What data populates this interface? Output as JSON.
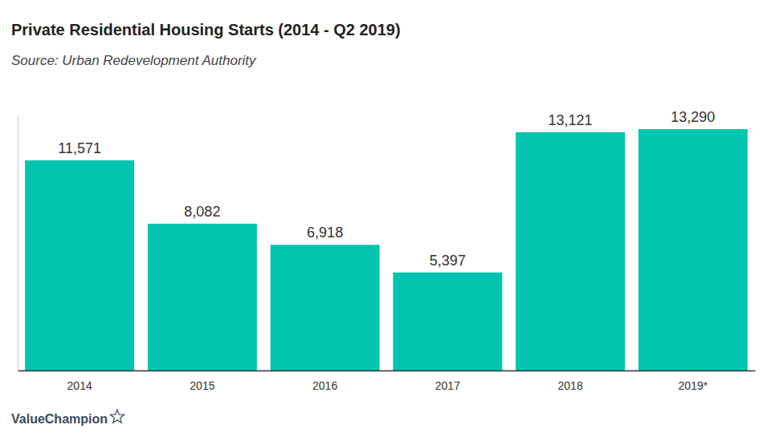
{
  "chart_data": {
    "type": "bar",
    "title": "Private Residential Housing Starts (2014 - Q2 2019)",
    "subtitle": "Source: Urban Redevelopment Authority",
    "categories": [
      "2014",
      "2015",
      "2016",
      "2017",
      "2018",
      "2019*"
    ],
    "values": [
      11571,
      8082,
      6918,
      5397,
      13121,
      13290
    ],
    "value_labels": [
      "11,571",
      "8,082",
      "6,918",
      "5,397",
      "13,121",
      "13,290"
    ],
    "color": "#00c4ad",
    "ylim": [
      0,
      14000
    ],
    "yticks": [],
    "grid": false,
    "data_labels": true,
    "tick_labels": "x",
    "annotations": [
      "ValueChampion"
    ]
  }
}
